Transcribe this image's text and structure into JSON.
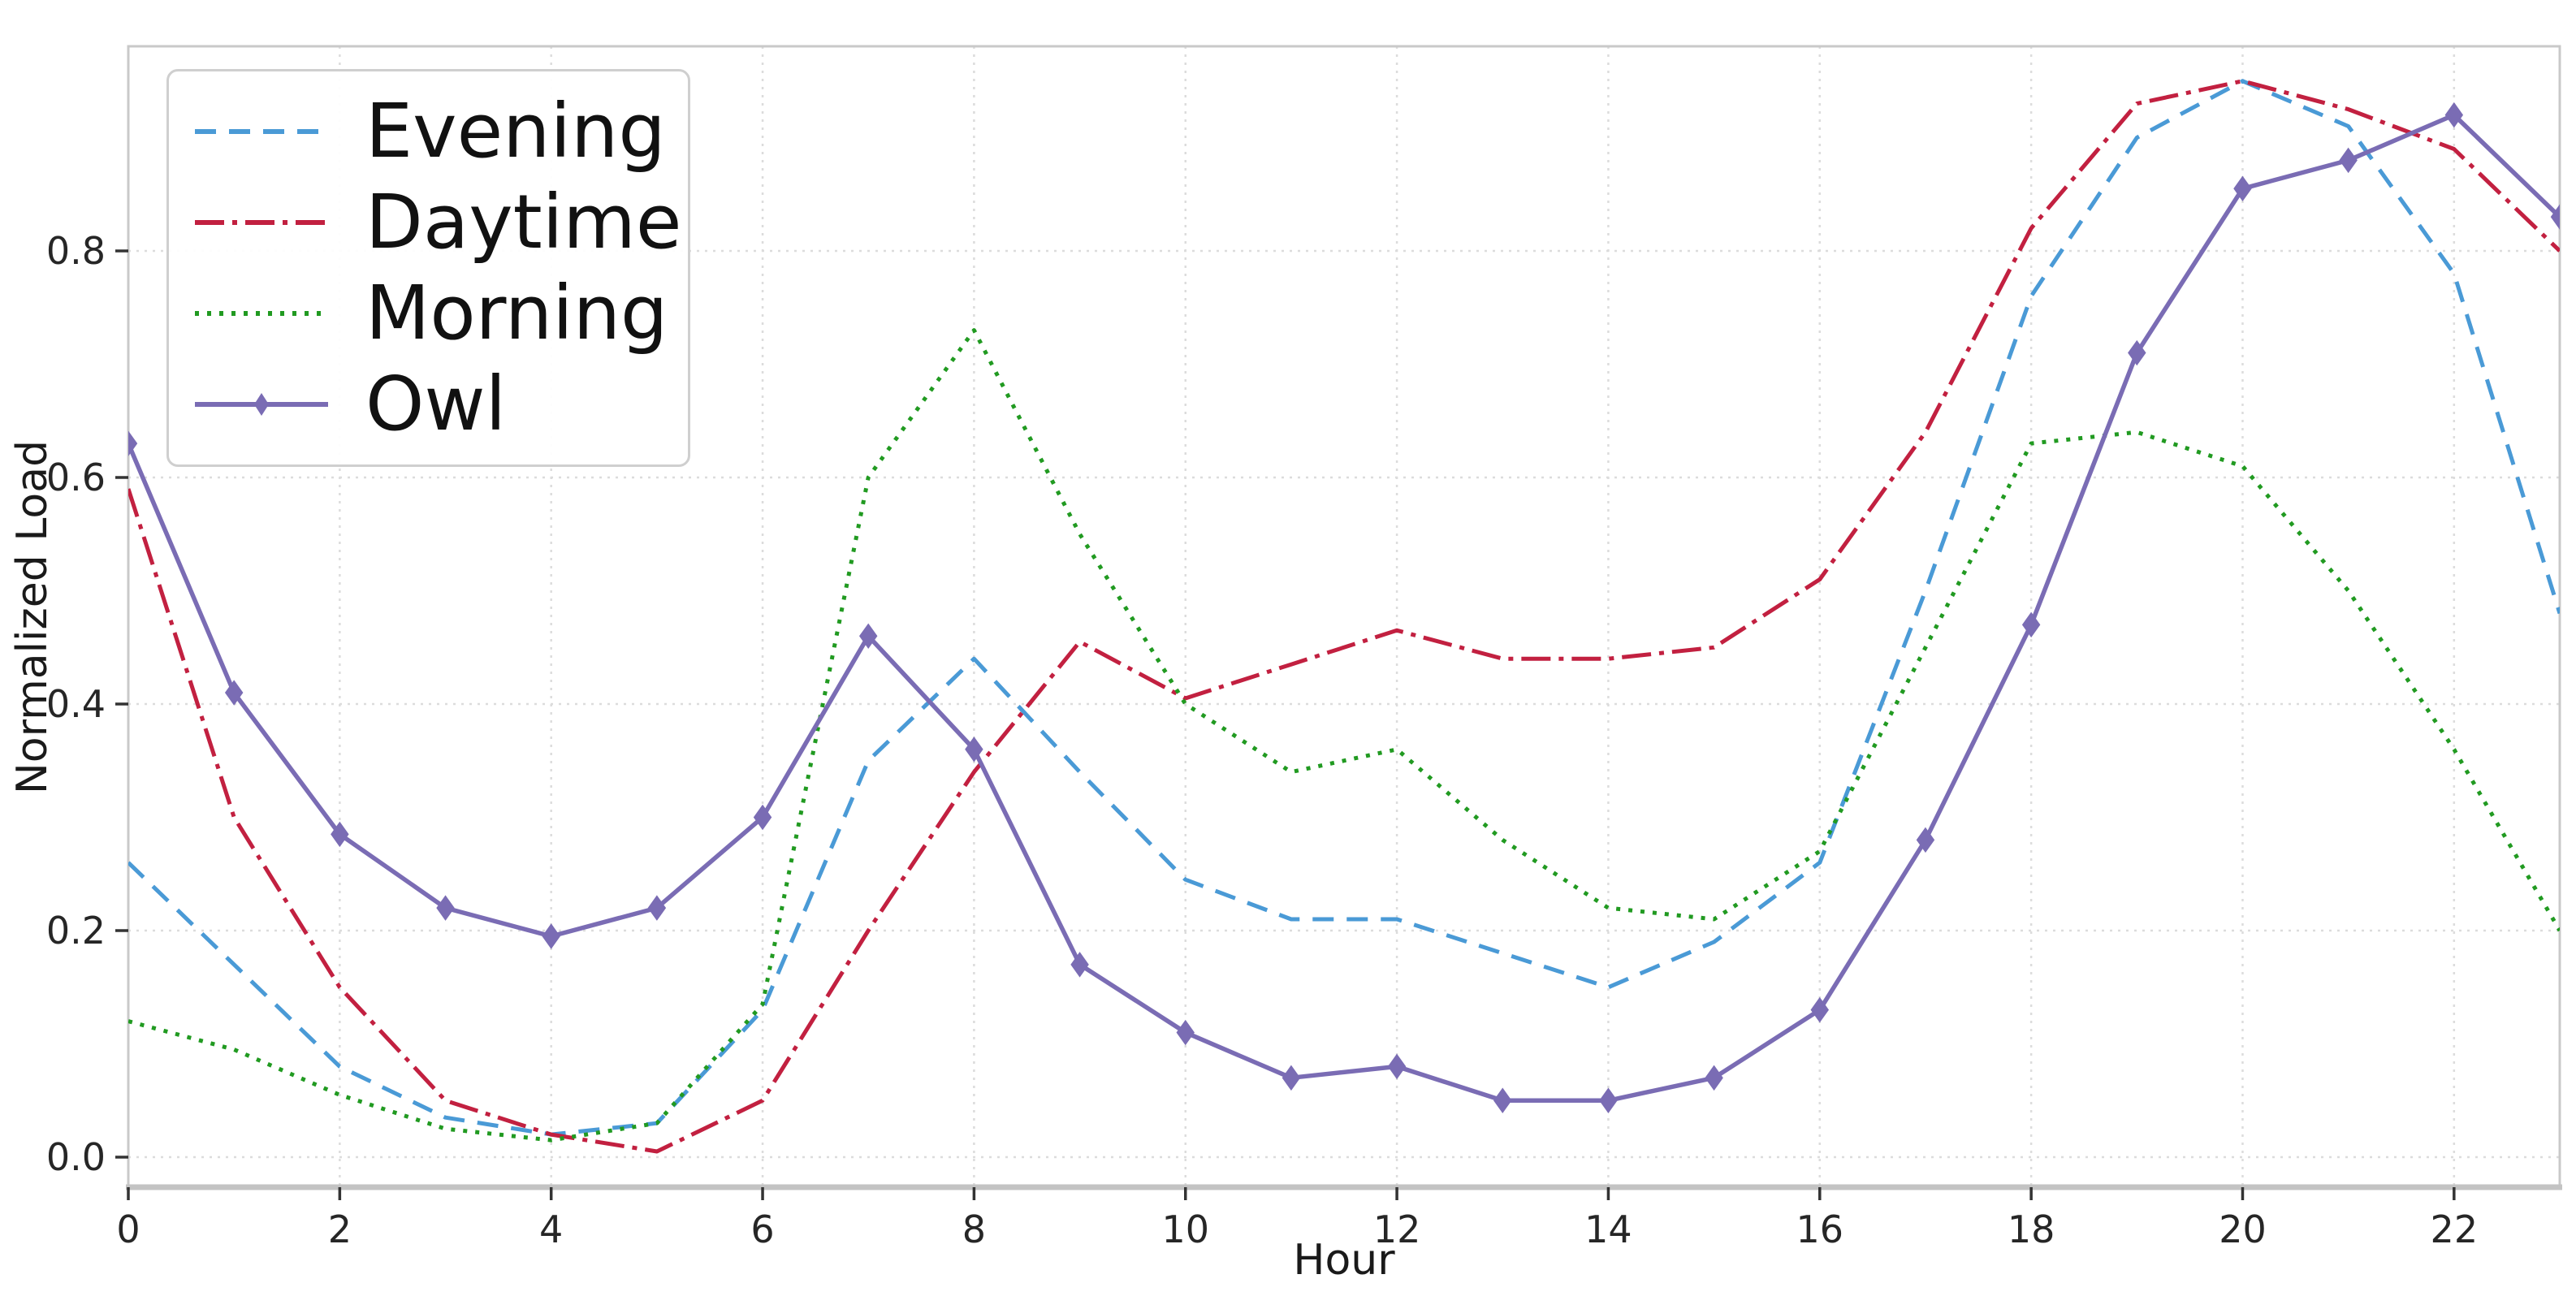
{
  "chart_data": {
    "type": "line",
    "title": "",
    "xlabel": "Hour",
    "ylabel": "Normalized Load",
    "x": [
      0,
      1,
      2,
      3,
      4,
      5,
      6,
      7,
      8,
      9,
      10,
      11,
      12,
      13,
      14,
      15,
      16,
      17,
      18,
      19,
      20,
      21,
      22,
      23
    ],
    "xlim": [
      0,
      23
    ],
    "ylim": [
      -0.03,
      0.98
    ],
    "xticks": [
      0,
      2,
      4,
      6,
      8,
      10,
      12,
      14,
      16,
      18,
      20,
      22
    ],
    "xtick_labels": [
      "0",
      "2",
      "4",
      "6",
      "8",
      "10",
      "12",
      "14",
      "16",
      "18",
      "20",
      "22"
    ],
    "yticks": [
      0.0,
      0.2,
      0.4,
      0.6,
      0.8
    ],
    "ytick_labels": [
      "0.0",
      "0.2",
      "0.4",
      "0.6",
      "0.8"
    ],
    "grid": true,
    "legend_position": "upper-left",
    "series": [
      {
        "name": "Evening",
        "color": "#4a9ad6",
        "style": "dashed",
        "marker": null,
        "values": [
          0.26,
          0.17,
          0.08,
          0.035,
          0.02,
          0.03,
          0.13,
          0.35,
          0.44,
          0.34,
          0.245,
          0.21,
          0.21,
          0.18,
          0.15,
          0.19,
          0.26,
          0.5,
          0.76,
          0.9,
          0.95,
          0.91,
          0.78,
          0.48
        ]
      },
      {
        "name": "Daytime",
        "color": "#c22040",
        "style": "dashdot",
        "marker": null,
        "values": [
          0.59,
          0.3,
          0.15,
          0.05,
          0.02,
          0.005,
          0.05,
          0.2,
          0.34,
          0.455,
          0.405,
          0.435,
          0.465,
          0.44,
          0.44,
          0.45,
          0.51,
          0.64,
          0.82,
          0.93,
          0.95,
          0.925,
          0.89,
          0.8
        ]
      },
      {
        "name": "Morning",
        "color": "#219a21",
        "style": "dotted",
        "marker": null,
        "values": [
          0.12,
          0.095,
          0.055,
          0.025,
          0.015,
          0.03,
          0.135,
          0.6,
          0.73,
          0.55,
          0.4,
          0.34,
          0.36,
          0.28,
          0.22,
          0.21,
          0.27,
          0.45,
          0.63,
          0.64,
          0.61,
          0.5,
          0.36,
          0.2
        ]
      },
      {
        "name": "Owl",
        "color": "#7a6cb4",
        "style": "solid",
        "marker": "diamond",
        "values": [
          0.63,
          0.41,
          0.285,
          0.22,
          0.195,
          0.22,
          0.3,
          0.46,
          0.36,
          0.17,
          0.11,
          0.07,
          0.08,
          0.05,
          0.05,
          0.07,
          0.13,
          0.28,
          0.47,
          0.71,
          0.855,
          0.88,
          0.92,
          0.83
        ]
      }
    ],
    "colors": {
      "grid": "#dcdcdc",
      "spine": "#c9c9c9",
      "bottom_spine": "#c3c3c3",
      "tick_mark": "#333333",
      "tick_text": "#262626",
      "background": "#ffffff"
    }
  }
}
